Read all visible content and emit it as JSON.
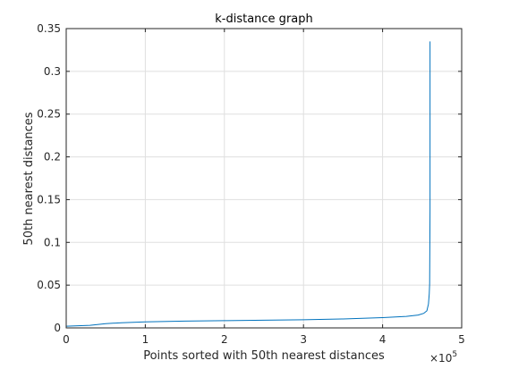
{
  "chart_data": {
    "type": "line",
    "title": "k-distance graph",
    "xlabel": "Points sorted with 50th nearest distances",
    "ylabel": "50th nearest distances",
    "xlim": [
      0,
      5
    ],
    "ylim": [
      0,
      0.35
    ],
    "x_exponent_label": "×10",
    "x_exponent_power": "5",
    "x_ticks": [
      0,
      1,
      2,
      3,
      4,
      5
    ],
    "x_tick_labels": [
      "0",
      "1",
      "2",
      "3",
      "4",
      "5"
    ],
    "y_ticks": [
      0,
      0.05,
      0.1,
      0.15,
      0.2,
      0.25,
      0.3,
      0.35
    ],
    "y_tick_labels": [
      "0",
      "0.05",
      "0.1",
      "0.15",
      "0.2",
      "0.25",
      "0.3",
      "0.35"
    ],
    "grid": true,
    "line_color": "#0072BD",
    "series": [
      {
        "x": [
          0,
          0.3,
          0.5,
          0.7,
          1.0,
          1.5,
          2.0,
          2.5,
          3.0,
          3.5,
          4.0,
          4.3,
          4.45,
          4.52,
          4.56,
          4.58,
          4.59,
          4.595,
          4.6,
          4.6
        ],
        "y": [
          0.002,
          0.003,
          0.005,
          0.006,
          0.007,
          0.008,
          0.0085,
          0.009,
          0.0095,
          0.0105,
          0.012,
          0.0135,
          0.015,
          0.017,
          0.02,
          0.028,
          0.04,
          0.052,
          0.14,
          0.335
        ]
      }
    ]
  }
}
